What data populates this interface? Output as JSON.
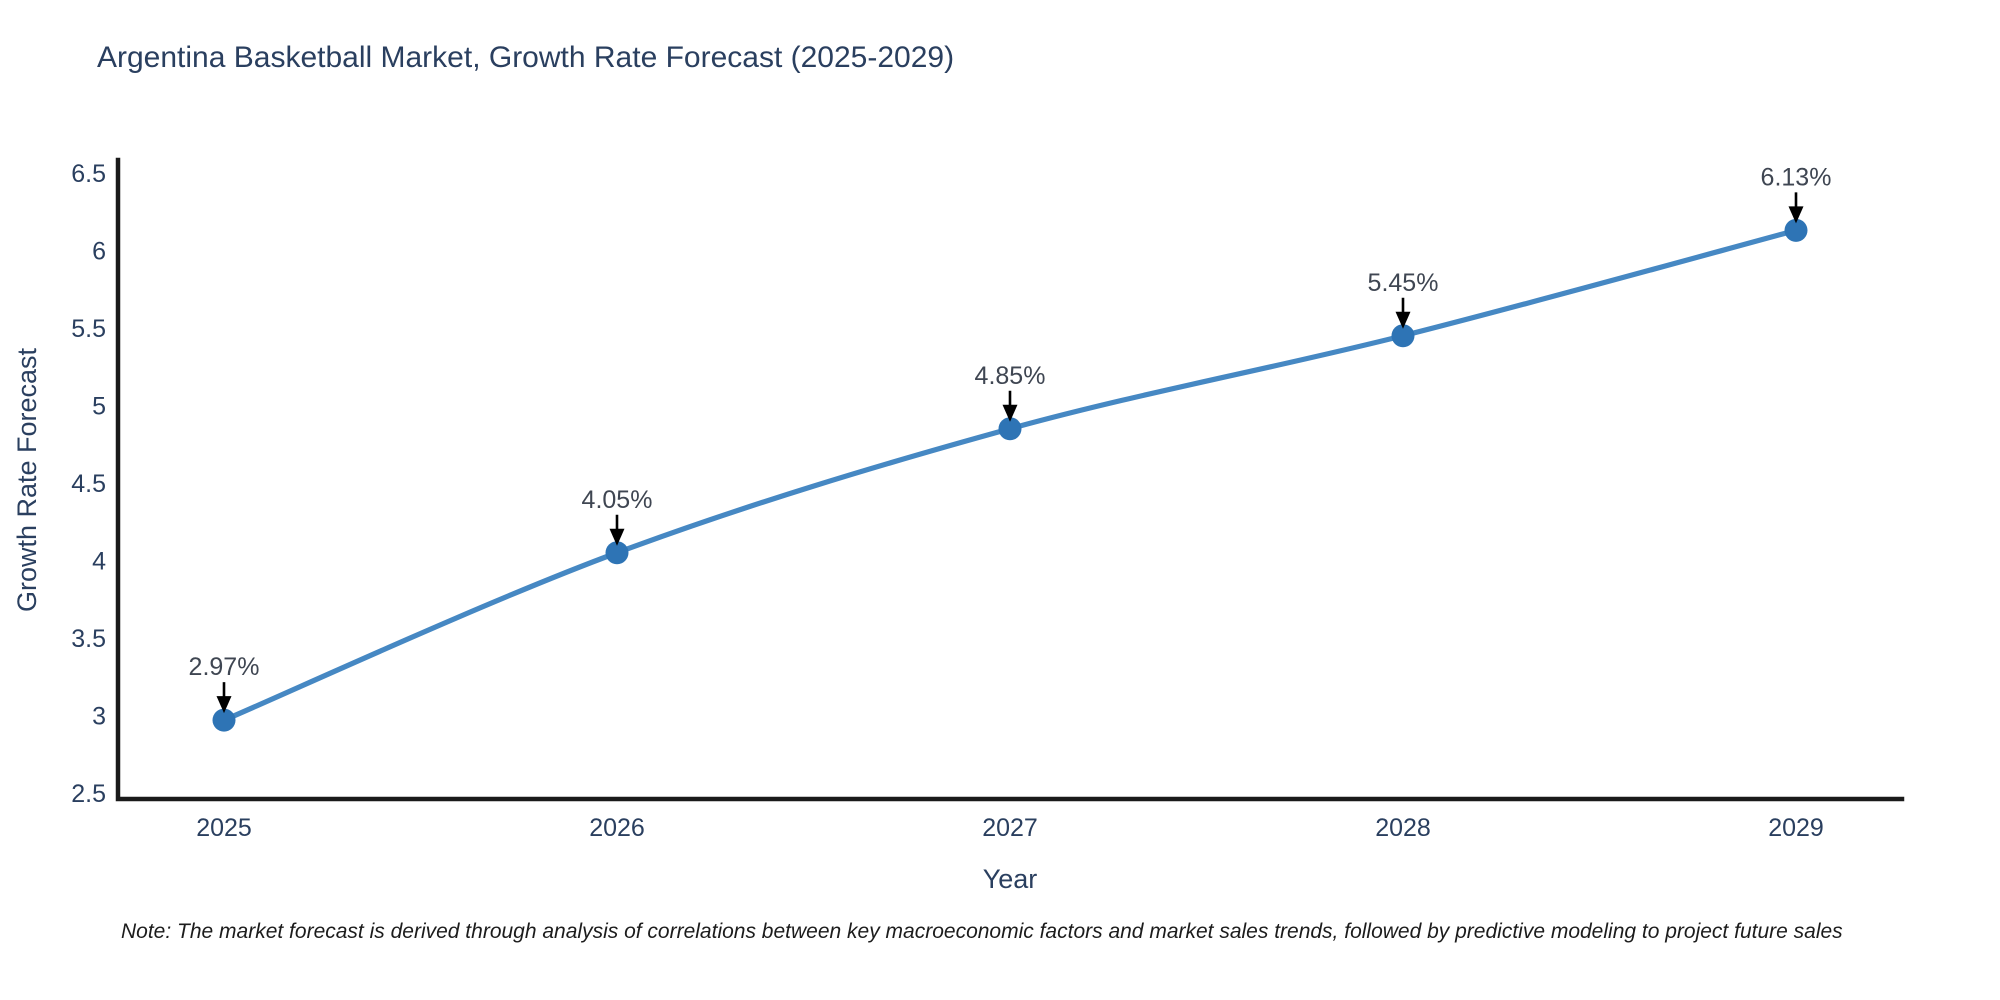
{
  "chart_data": {
    "type": "line",
    "title": "Argentina Basketball Market, Growth Rate Forecast (2025-2029)",
    "xlabel": "Year",
    "ylabel": "Growth Rate Forecast",
    "categories": [
      "2025",
      "2026",
      "2027",
      "2028",
      "2029"
    ],
    "series": [
      {
        "name": "Growth Rate Forecast",
        "values": [
          2.97,
          4.05,
          4.85,
          5.45,
          6.13
        ],
        "point_labels": [
          "2.97%",
          "4.05%",
          "4.85%",
          "5.45%",
          "6.13%"
        ]
      }
    ],
    "yticks": [
      2.5,
      3,
      3.5,
      4,
      4.5,
      5,
      5.5,
      6,
      6.5
    ],
    "ylim": [
      2.5,
      6.5
    ],
    "grid": false,
    "legend_position": "none",
    "line_shape": "spline",
    "markers": true,
    "annotations_have_arrows": true,
    "colors": {
      "line": "#4688c3",
      "marker": "#2e74b5",
      "axis": "#1a1a1a",
      "text": "#2a3f5f",
      "annotation_text": "#3f4652",
      "arrow": "#000000",
      "background": "#ffffff"
    }
  },
  "note": {
    "text": "Note: The market forecast is derived through analysis of correlations between key macroeconomic factors and market sales trends, followed by predictive modeling to project future sales"
  }
}
